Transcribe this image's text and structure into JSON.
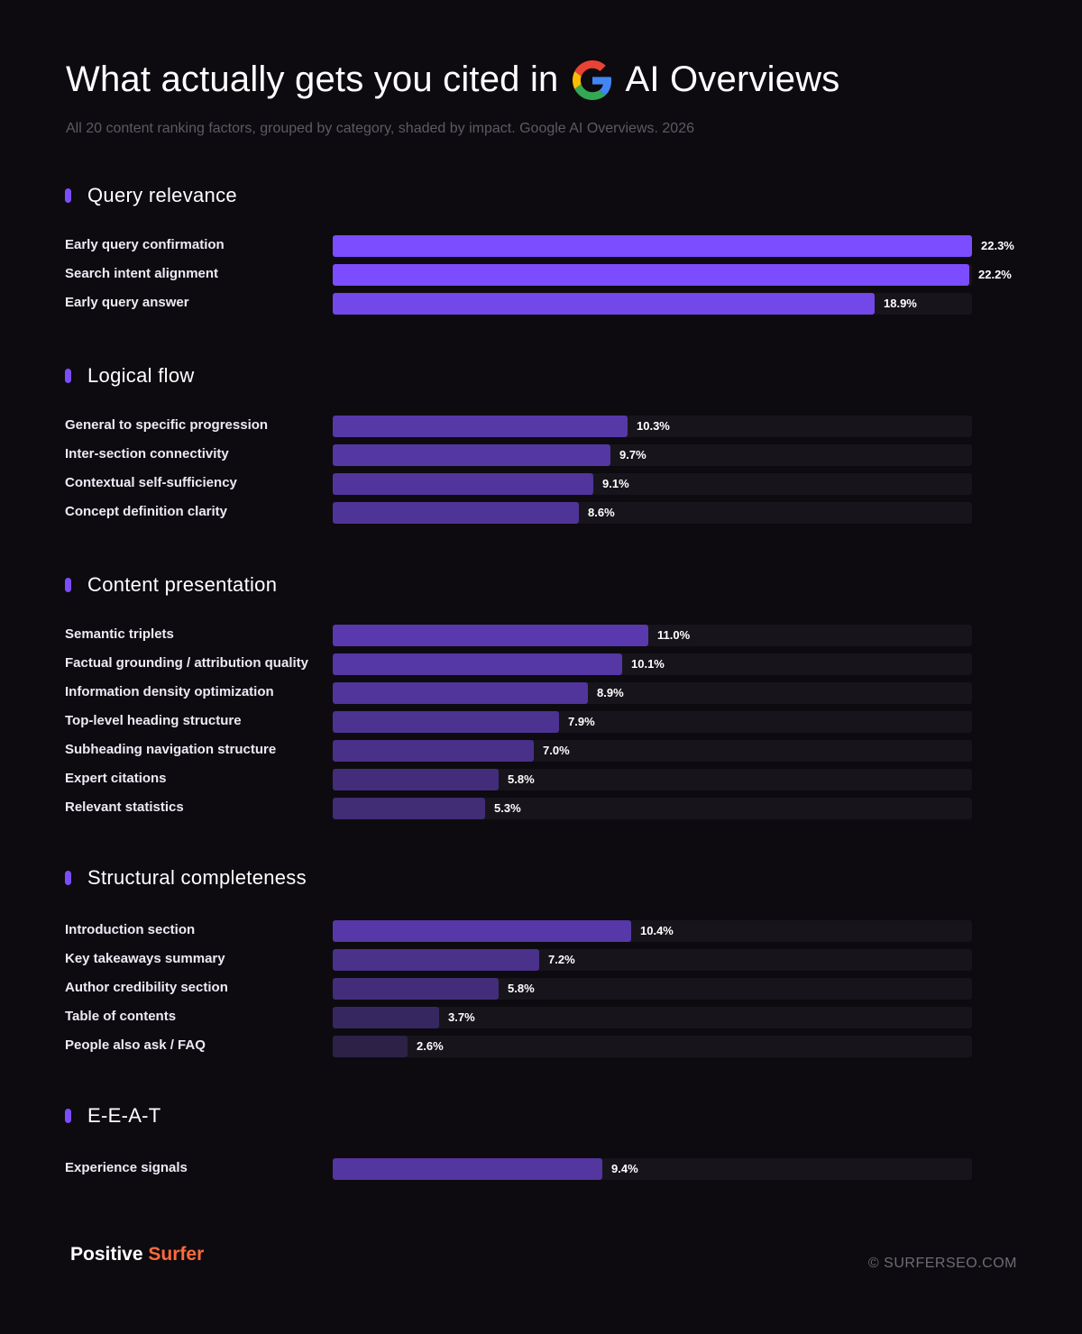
{
  "header": {
    "title_before": "What actually gets you cited in",
    "title_after": "AI Overviews",
    "logo_icon": "google-g-icon",
    "subtitle": "All 20 content ranking factors, grouped by category, shaded by impact. Google AI Overviews. 2026"
  },
  "colors": {
    "background": "#0d0b10",
    "accent": "#7c4dff",
    "track": "#17151b",
    "bar_high": "#7c4dff",
    "bar_low": "#2d2148",
    "brand_orange": "#ff6a3d"
  },
  "chart_data": {
    "type": "bar",
    "orientation": "horizontal",
    "unit": "%",
    "xlim": [
      0,
      22.3
    ],
    "grid": false,
    "groups": [
      {
        "name": "Query relevance",
        "categories": [
          "Early query confirmation",
          "Search intent alignment",
          "Early query answer"
        ],
        "values": [
          22.3,
          22.2,
          18.9
        ],
        "labels": [
          "22.3%",
          "22.2%",
          "18.9%"
        ]
      },
      {
        "name": "Logical flow",
        "categories": [
          "General to specific progression",
          "Inter-section connectivity",
          "Contextual self-sufficiency",
          "Concept definition clarity"
        ],
        "values": [
          10.3,
          9.7,
          9.1,
          8.6
        ],
        "labels": [
          "10.3%",
          "9.7%",
          "9.1%",
          "8.6%"
        ]
      },
      {
        "name": "Content presentation",
        "categories": [
          "Semantic triplets",
          "Factual grounding / attribution quality",
          "Information density optimization",
          "Top-level heading structure",
          "Subheading navigation structure",
          "Expert citations",
          "Relevant statistics"
        ],
        "values": [
          11.0,
          10.1,
          8.9,
          7.9,
          7.0,
          5.8,
          5.3
        ],
        "labels": [
          "11.0%",
          "10.1%",
          "8.9%",
          "7.9%",
          "7.0%",
          "5.8%",
          "5.3%"
        ]
      },
      {
        "name": "Structural completeness",
        "categories": [
          "Introduction section",
          "Key takeaways summary",
          "Author credibility section",
          "Table of contents",
          "People also ask / FAQ"
        ],
        "values": [
          10.4,
          7.2,
          5.8,
          3.7,
          2.6
        ],
        "labels": [
          "10.4%",
          "7.2%",
          "5.8%",
          "3.7%",
          "2.6%"
        ]
      },
      {
        "name": "E-E-A-T",
        "categories": [
          "Experience signals"
        ],
        "values": [
          9.4
        ],
        "labels": [
          "9.4%"
        ]
      }
    ]
  },
  "footer": {
    "brand_part1": "Positive",
    "brand_part2": "Surfer",
    "site": "© SURFERSEO.COM"
  }
}
